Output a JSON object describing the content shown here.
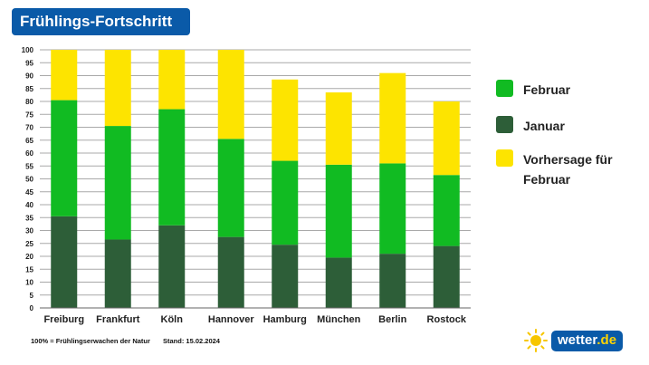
{
  "title": "Frühlings-Fortschritt",
  "colors": {
    "januar": "#2d5e38",
    "februar": "#11bb22",
    "vorhersage": "#fde400",
    "title_bg": "#0a5aa8"
  },
  "legend": [
    {
      "label": "Februar",
      "color": "#11bb22"
    },
    {
      "label": "Januar",
      "color": "#2d5e38"
    },
    {
      "label": "Vorhersage für Februar",
      "color": "#fde400"
    }
  ],
  "chart_data": {
    "type": "bar",
    "stacked": true,
    "categories": [
      "Freiburg",
      "Frankfurt",
      "Köln",
      "Hannover",
      "Hamburg",
      "München",
      "Berlin",
      "Rostock"
    ],
    "series": [
      {
        "name": "Januar",
        "values": [
          35.5,
          26.5,
          32,
          27.5,
          24.5,
          19.5,
          21,
          24
        ],
        "color": "#2d5e38"
      },
      {
        "name": "Februar",
        "values": [
          45,
          44,
          45,
          38,
          32.5,
          36,
          35,
          27.5
        ],
        "color": "#11bb22"
      },
      {
        "name": "Vorhersage für Februar",
        "values": [
          19.5,
          29.5,
          23,
          34.5,
          31.5,
          28,
          35,
          28.5
        ],
        "color": "#fde400"
      }
    ],
    "ylim": [
      0,
      100
    ],
    "yticks": [
      0,
      5,
      10,
      15,
      20,
      25,
      30,
      35,
      40,
      45,
      50,
      55,
      60,
      65,
      70,
      75,
      80,
      85,
      90,
      95,
      100
    ],
    "grid": true,
    "legend_position": "right"
  },
  "footnote": {
    "definition": "100% = Frühlingserwachen der Natur",
    "stand": "Stand: 15.02.2024"
  },
  "logo": {
    "name": "wetter",
    "tld": ".de",
    "icon": "sun-icon"
  }
}
